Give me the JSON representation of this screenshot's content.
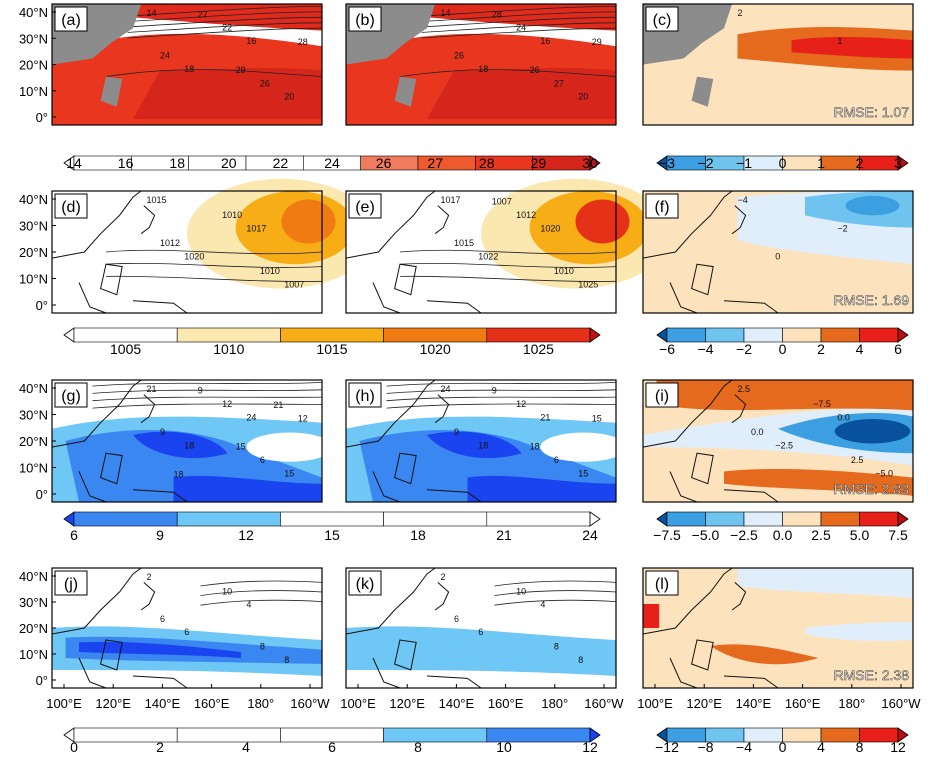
{
  "chart_data": {
    "type": "heatmap",
    "lat_ticks": [
      "40°N",
      "30°N",
      "20°N",
      "10°N",
      "0°"
    ],
    "lon_ticks": [
      "100°E",
      "120°E",
      "140°E",
      "160°E",
      "180°",
      "160°W"
    ],
    "rows": [
      {
        "panels": [
          {
            "label": "(a)",
            "fill": "#e02a1c",
            "contours": [
              "14",
              "16",
              "18",
              "20",
              "22",
              "24",
              "26",
              "27",
              "28",
              "29"
            ]
          },
          {
            "label": "(b)",
            "fill": "#e02a1c",
            "contours": [
              "14",
              "16",
              "18",
              "20",
              "24",
              "26",
              "27",
              "28",
              "29",
              "26"
            ]
          },
          {
            "label": "(c)",
            "fill": "#fde3bd",
            "rmse": "RMSE: 1.07",
            "contours": [
              "2",
              "1"
            ]
          }
        ],
        "colorbar": {
          "labels": [
            "14",
            "16",
            "18",
            "20",
            "22",
            "24",
            "26",
            "27",
            "28",
            "29",
            "30"
          ],
          "colors": [
            "#ffffff",
            "#ffffff",
            "#ffffff",
            "#ffffff",
            "#ffffff",
            "#ffffff",
            "#f27b5e",
            "#ee5a2e",
            "#e8371e",
            "#d6261c",
            "#b0171b"
          ]
        },
        "diff_colorbar": {
          "labels": [
            "−3",
            "−2",
            "−1",
            "0",
            "1",
            "2",
            "3"
          ],
          "colors": [
            "#08519c",
            "#3c9fe2",
            "#6fc4ef",
            "#dfeefa",
            "#fde3bd",
            "#e56a1e",
            "#e8201a",
            "#b80f14"
          ]
        }
      },
      {
        "panels": [
          {
            "label": "(d)",
            "fill": "#ffffff",
            "contours": [
              "1015",
              "1017",
              "1020",
              "1007",
              "1010",
              "1012",
              "1010"
            ]
          },
          {
            "label": "(e)",
            "fill": "#ffffff",
            "contours": [
              "1017",
              "1020",
              "1022",
              "1025",
              "1012",
              "1015",
              "1010",
              "1007"
            ]
          },
          {
            "label": "(f)",
            "fill": "#fde3bd",
            "rmse": "RMSE: 1.69",
            "contours": [
              "−4",
              "−2",
              "0"
            ]
          }
        ],
        "colorbar": {
          "labels": [
            "1005",
            "1010",
            "1015",
            "1020",
            "1025"
          ],
          "colors": [
            "#ffffff",
            "#ffffff",
            "#fbe7b0",
            "#f6ad16",
            "#f07b12",
            "#e63119",
            "#c1121b"
          ]
        },
        "diff_colorbar": {
          "labels": [
            "−6",
            "−4",
            "−2",
            "0",
            "2",
            "4",
            "6"
          ],
          "colors": [
            "#08519c",
            "#3c9fe2",
            "#6fc4ef",
            "#dfeefa",
            "#fde3bd",
            "#e56a1e",
            "#e8201a",
            "#b80f14"
          ]
        }
      },
      {
        "panels": [
          {
            "label": "(g)",
            "fill": "#ffffff",
            "contours": [
              "21",
              "24",
              "18",
              "15",
              "12",
              "9",
              "6",
              "9",
              "12",
              "15",
              "18",
              "21"
            ]
          },
          {
            "label": "(h)",
            "fill": "#ffffff",
            "contours": [
              "24",
              "21",
              "18",
              "15",
              "12",
              "9",
              "6",
              "9",
              "15",
              "18"
            ]
          },
          {
            "label": "(i)",
            "fill": "#fde3bd",
            "rmse": "RMSE: 2.83",
            "contours": [
              "2.5",
              "0.0",
              "−2.5",
              "−5.0",
              "−7.5",
              "0.0",
              "2.5"
            ]
          }
        ],
        "colorbar": {
          "labels": [
            "6",
            "9",
            "12",
            "15",
            "18",
            "21",
            "24"
          ],
          "colors": [
            "#1a44f0",
            "#3b87f2",
            "#6fc7f5",
            "#ffffff",
            "#ffffff",
            "#ffffff",
            "#ffffff"
          ]
        },
        "diff_colorbar": {
          "labels": [
            "−7.5",
            "−5.0",
            "−2.5",
            "0.0",
            "2.5",
            "5.0",
            "7.5"
          ],
          "colors": [
            "#08519c",
            "#3c9fe2",
            "#6fc4ef",
            "#dfeefa",
            "#fde3bd",
            "#e56a1e",
            "#e8201a",
            "#b80f14"
          ]
        }
      },
      {
        "panels": [
          {
            "label": "(j)",
            "fill": "#ffffff",
            "contours": [
              "2",
              "4",
              "6",
              "8",
              "10",
              "6",
              "8"
            ]
          },
          {
            "label": "(k)",
            "fill": "#ffffff",
            "contours": [
              "2",
              "4",
              "6",
              "8",
              "10",
              "6",
              "8"
            ]
          },
          {
            "label": "(l)",
            "fill": "#fde3bd",
            "rmse": "RMSE: 2.38",
            "contours": []
          }
        ],
        "colorbar": {
          "labels": [
            "0",
            "2",
            "4",
            "6",
            "8",
            "10",
            "12"
          ],
          "colors": [
            "#ffffff",
            "#ffffff",
            "#ffffff",
            "#ffffff",
            "#6fc7f5",
            "#3b87f2",
            "#1a44f0"
          ]
        },
        "diff_colorbar": {
          "labels": [
            "−12",
            "−8",
            "−4",
            "0",
            "4",
            "8",
            "12"
          ],
          "colors": [
            "#08519c",
            "#3c9fe2",
            "#6fc4ef",
            "#dfeefa",
            "#fde3bd",
            "#e56a1e",
            "#e8201a",
            "#b80f14"
          ]
        }
      }
    ]
  }
}
